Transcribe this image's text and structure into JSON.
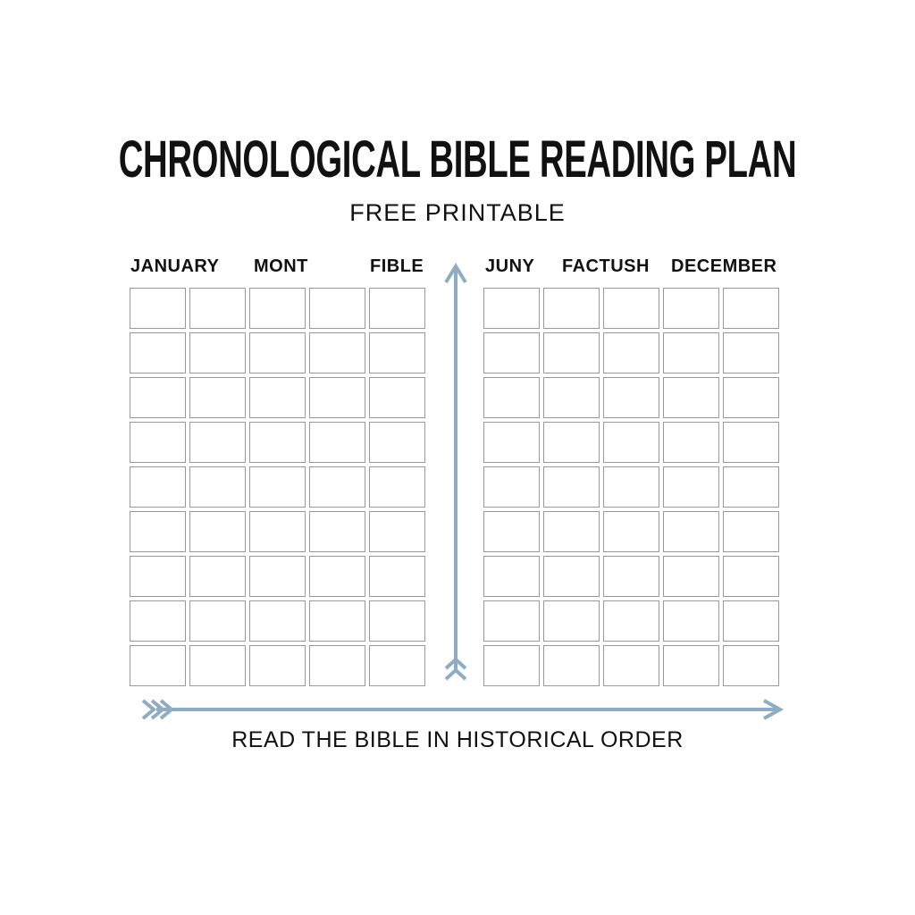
{
  "title": "CHRONOLOGICAL BIBLE READING PLAN",
  "subtitle": "FREE PRINTABLE",
  "left_headers": [
    "JANUARY",
    "MONT",
    "FIBLE"
  ],
  "right_headers": [
    "JUNY",
    "FACTUSH",
    "DECEMBER"
  ],
  "grid": {
    "rows": 9,
    "columns_per_side": 5
  },
  "footer": "READ THE BIBLE IN HISTORICAL ORDER",
  "colors": {
    "arrow": "#8eadc2",
    "cell_border": "#999999",
    "text": "#111111"
  },
  "icons": [
    "arrow-up-icon",
    "arrow-right-icon"
  ]
}
